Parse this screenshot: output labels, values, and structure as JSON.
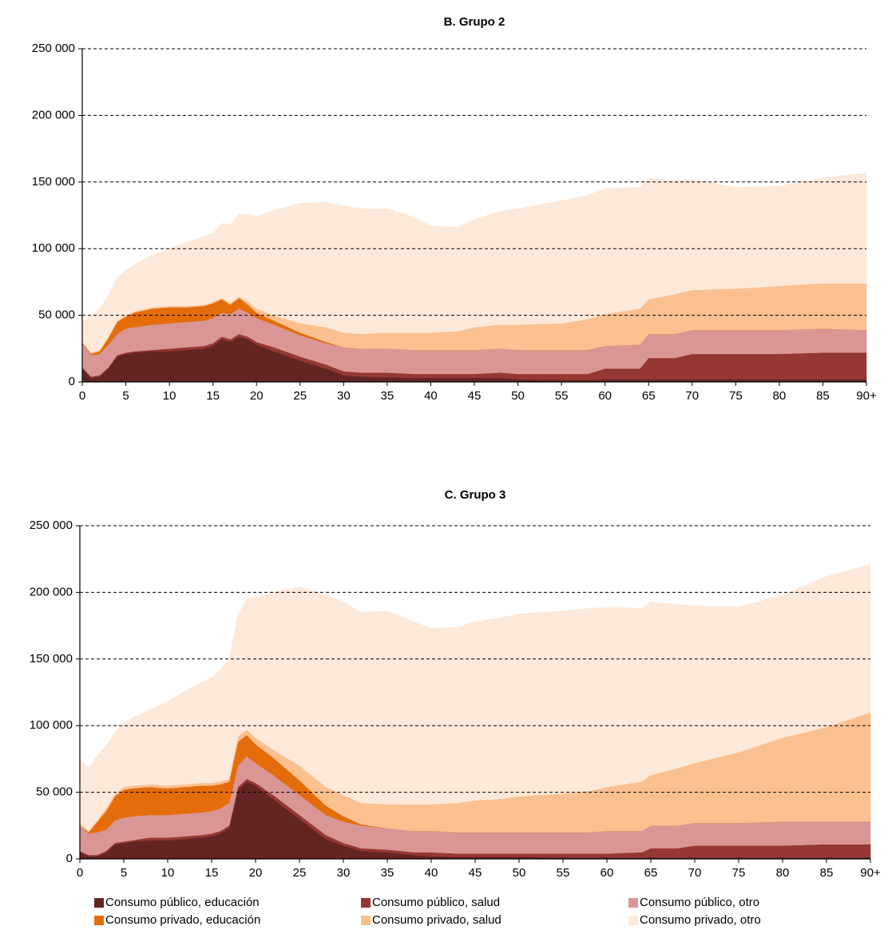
{
  "chart_data": [
    {
      "type": "area",
      "stacked": true,
      "title": "B. Grupo 2",
      "grid": true,
      "x": [
        0,
        1,
        2,
        3,
        4,
        5,
        6,
        8,
        10,
        12,
        14,
        15,
        16,
        17,
        18,
        19,
        20,
        22,
        25,
        28,
        30,
        32,
        35,
        38,
        40,
        43,
        45,
        48,
        50,
        55,
        58,
        60,
        64,
        65,
        68,
        70,
        75,
        80,
        85,
        90
      ],
      "xlim": [
        0,
        90
      ],
      "xticks": [
        0,
        5,
        10,
        15,
        20,
        25,
        30,
        35,
        40,
        45,
        50,
        55,
        60,
        65,
        70,
        75,
        80,
        85,
        {
          "value": 90,
          "label": "90+"
        }
      ],
      "ylim": [
        0,
        250000
      ],
      "yticks": [
        0,
        {
          "value": 50000,
          "label": "50 000"
        },
        {
          "value": 100000,
          "label": "100 000"
        },
        {
          "value": 150000,
          "label": "150 000"
        },
        {
          "value": 200000,
          "label": "200 000"
        },
        {
          "value": 250000,
          "label": "250 000"
        }
      ],
      "series": [
        {
          "color": "#632523",
          "values": [
            10000,
            3000,
            4000,
            10000,
            19000,
            21000,
            22000,
            23000,
            23000,
            24000,
            25000,
            27000,
            32000,
            30000,
            34000,
            32000,
            28000,
            23000,
            16000,
            10000,
            5000,
            4000,
            3500,
            3000,
            3000,
            3000,
            3000,
            3000,
            2000,
            1500,
            1500,
            2000,
            2000,
            2000,
            2000,
            2000,
            2000,
            2000,
            2000,
            2000
          ]
        },
        {
          "color": "#953735",
          "values": [
            1000,
            1000,
            1000,
            1000,
            1000,
            1000,
            1000,
            1000,
            2000,
            2000,
            2000,
            2000,
            2000,
            2000,
            2000,
            2000,
            2000,
            3000,
            3000,
            3000,
            3000,
            3000,
            3500,
            3000,
            3000,
            3000,
            3000,
            4000,
            4000,
            4500,
            4500,
            8000,
            8000,
            16000,
            16000,
            19000,
            19000,
            19000,
            20000,
            20000
          ]
        },
        {
          "color": "#d99694",
          "values": [
            19000,
            16000,
            16000,
            17000,
            16000,
            18000,
            18000,
            19000,
            19000,
            19000,
            19000,
            19000,
            18000,
            19000,
            19000,
            18000,
            18000,
            17000,
            16000,
            16000,
            18000,
            18000,
            18000,
            18000,
            18000,
            18000,
            18000,
            18000,
            18000,
            18000,
            18000,
            17000,
            18000,
            18000,
            18000,
            18000,
            18000,
            18000,
            18000,
            17000
          ]
        },
        {
          "color": "#e46c0a",
          "values": [
            0,
            1000,
            2000,
            5000,
            9000,
            9000,
            11000,
            12000,
            12000,
            11000,
            11000,
            11000,
            10000,
            7000,
            8000,
            6000,
            4000,
            3000,
            2000,
            1000,
            0,
            0,
            0,
            0,
            0,
            0,
            0,
            0,
            0,
            0,
            0,
            0,
            0,
            0,
            0,
            0,
            0,
            0,
            0,
            0
          ]
        },
        {
          "color": "#fac090",
          "values": [
            0,
            1000,
            1000,
            1000,
            1000,
            1000,
            1000,
            1000,
            1000,
            1000,
            1000,
            1000,
            1000,
            1000,
            1000,
            2000,
            3000,
            4000,
            7000,
            11000,
            11000,
            11000,
            12000,
            13000,
            13000,
            14000,
            17000,
            18000,
            19000,
            20000,
            23000,
            24000,
            27000,
            26000,
            30000,
            30000,
            31000,
            33000,
            34000,
            35000
          ]
        },
        {
          "color": "#fde9d9",
          "values": [
            15000,
            28000,
            31000,
            31000,
            32000,
            34000,
            35000,
            39000,
            43000,
            48000,
            51000,
            52000,
            56000,
            59000,
            62000,
            66000,
            69000,
            79000,
            90000,
            94000,
            95000,
            94000,
            93000,
            87000,
            80000,
            78000,
            81000,
            85000,
            87000,
            92000,
            93000,
            94000,
            91000,
            91000,
            85000,
            83000,
            76000,
            75000,
            79000,
            83000
          ]
        }
      ]
    },
    {
      "type": "area",
      "stacked": true,
      "title": "C. Grupo 3",
      "grid": true,
      "x": [
        0,
        1,
        2,
        3,
        4,
        5,
        6,
        8,
        10,
        12,
        14,
        15,
        16,
        17,
        18,
        19,
        20,
        22,
        25,
        28,
        30,
        32,
        35,
        38,
        40,
        43,
        45,
        48,
        50,
        55,
        58,
        60,
        64,
        65,
        68,
        70,
        75,
        80,
        85,
        90
      ],
      "xlim": [
        0,
        90
      ],
      "xticks": [
        0,
        5,
        10,
        15,
        20,
        25,
        30,
        35,
        40,
        45,
        50,
        55,
        60,
        65,
        70,
        75,
        80,
        85,
        {
          "value": 90,
          "label": "90+"
        }
      ],
      "ylim": [
        0,
        250000
      ],
      "yticks": [
        0,
        {
          "value": 50000,
          "label": "50 000"
        },
        {
          "value": 100000,
          "label": "100 000"
        },
        {
          "value": 150000,
          "label": "150 000"
        },
        {
          "value": 200000,
          "label": "200 000"
        },
        {
          "value": 250000,
          "label": "250 000"
        }
      ],
      "series": [
        {
          "name": "Consumo público, educación",
          "color": "#632523",
          "values": [
            5000,
            2000,
            2000,
            5000,
            11000,
            12000,
            13000,
            14000,
            14000,
            15000,
            16000,
            17000,
            19000,
            23000,
            52000,
            58000,
            55000,
            45000,
            30000,
            15000,
            10000,
            6000,
            5000,
            3000,
            2000,
            1500,
            1500,
            1500,
            1500,
            1000,
            1000,
            1000,
            1000,
            1000,
            1000,
            1000,
            1000,
            1000,
            1000,
            1000
          ]
        },
        {
          "name": "Consumo público, salud",
          "color": "#953735",
          "values": [
            1000,
            1000,
            1000,
            1000,
            1000,
            1000,
            1000,
            2000,
            2000,
            2000,
            2000,
            2000,
            2000,
            2000,
            2000,
            2000,
            2000,
            3000,
            3000,
            3000,
            2000,
            2000,
            2000,
            2000,
            3000,
            2500,
            2500,
            2500,
            2500,
            3000,
            3000,
            3000,
            4000,
            7000,
            7000,
            9000,
            9000,
            9000,
            10000,
            10000
          ]
        },
        {
          "name": "Consumo público, otro",
          "color": "#d99694",
          "values": [
            19000,
            16000,
            17000,
            16000,
            17000,
            18000,
            18000,
            17000,
            17000,
            17000,
            17000,
            17000,
            17000,
            17000,
            16000,
            17000,
            15000,
            15000,
            15000,
            15000,
            16000,
            17000,
            16000,
            16000,
            16000,
            16000,
            16000,
            16000,
            16000,
            16000,
            16000,
            17000,
            16000,
            17000,
            17000,
            17000,
            17000,
            18000,
            17000,
            17000
          ]
        },
        {
          "name": "Consumo privado, educación",
          "color": "#e46c0a",
          "values": [
            0,
            1000,
            8000,
            14000,
            18000,
            21000,
            21000,
            21000,
            20000,
            20000,
            20000,
            19000,
            18000,
            16000,
            18000,
            16000,
            14000,
            13000,
            11000,
            7000,
            4000,
            1000,
            0,
            0,
            0,
            0,
            0,
            0,
            0,
            0,
            0,
            0,
            0,
            0,
            0,
            0,
            0,
            0,
            0,
            0
          ]
        },
        {
          "name": "Consumo privado, salud",
          "color": "#fac090",
          "values": [
            2000,
            1000,
            1000,
            2000,
            2000,
            2000,
            2000,
            2000,
            2000,
            2000,
            2000,
            2000,
            2000,
            2000,
            4000,
            4000,
            5000,
            6000,
            11000,
            14000,
            16000,
            16000,
            18000,
            20000,
            20000,
            22000,
            24000,
            25000,
            27000,
            29000,
            31000,
            33000,
            37000,
            38000,
            43000,
            45000,
            53000,
            63000,
            71000,
            82000
          ]
        },
        {
          "name": "Consumo privado, otro",
          "color": "#fde9d9",
          "values": [
            48000,
            47000,
            49000,
            47000,
            46000,
            48000,
            51000,
            56000,
            63000,
            70000,
            76000,
            79000,
            84000,
            90000,
            91000,
            98000,
            105000,
            118000,
            134000,
            144000,
            145000,
            143000,
            145000,
            137000,
            132000,
            132000,
            134000,
            136000,
            137000,
            137000,
            137000,
            135000,
            130000,
            130000,
            123000,
            118000,
            109000,
            107000,
            113000,
            111000
          ]
        }
      ]
    }
  ]
}
